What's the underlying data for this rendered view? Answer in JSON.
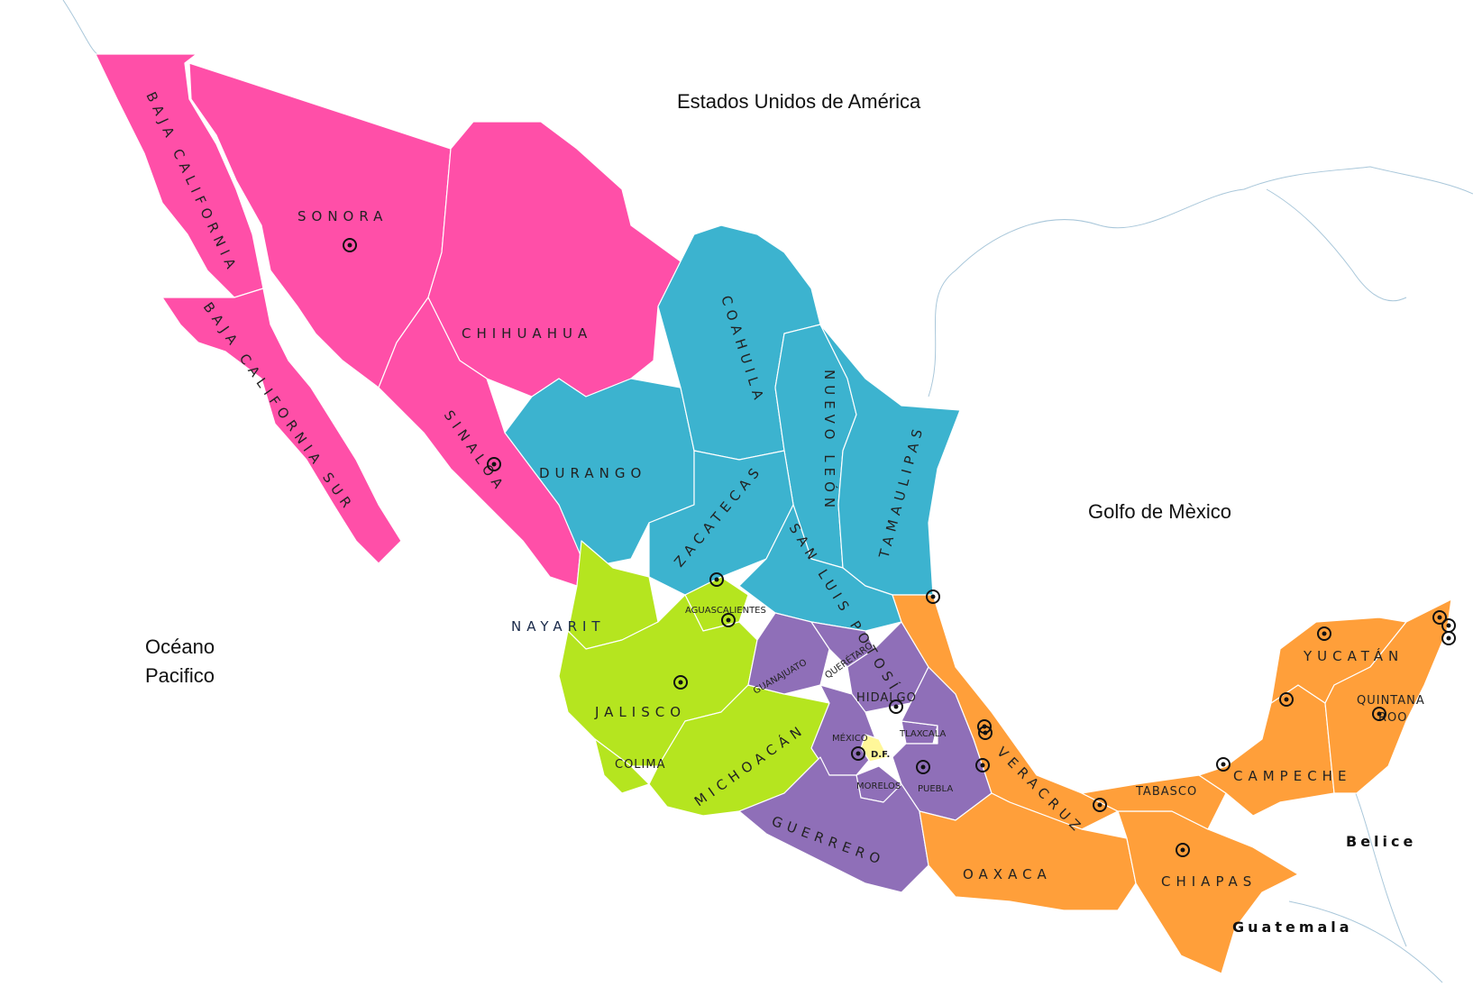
{
  "colors": {
    "northwest": "#ff4fa8",
    "north": "#3cb3cf",
    "west": "#b5e51f",
    "center": "#8f6fb8",
    "south": "#ff9f3a",
    "df": "#fff799",
    "water_coast": "#a9c7da"
  },
  "labels": {
    "usa": "Estados Unidos de América",
    "gulf": "Golfo de Mèxico",
    "ocean_line1": "Océano",
    "ocean_line2": "Pacifico",
    "belice": "Belice",
    "guatemala": "Guatemala"
  },
  "states": {
    "baja_california": "BAJA CALIFORNIA",
    "baja_california_sur": "BAJA CALIFORNIA SUR",
    "sonora": "SONORA",
    "chihuahua": "CHIHUAHUA",
    "sinaloa": "SINALOA",
    "durango": "DURANGO",
    "coahuila": "COAHUILA",
    "nuevo_leon": "NUEVO LEÓN",
    "tamaulipas": "TAMAULIPAS",
    "zacatecas": "ZACATECAS",
    "san_luis_potosi": "SAN LUIS POTOSÍ",
    "nayarit": "NAYARIT",
    "aguascalientes": "AGUASCALIENTES",
    "jalisco": "JALISCO",
    "colima": "COLIMA",
    "michoacan": "MICHOACÁN",
    "guanajuato": "GUANAJUATO",
    "queretaro": "QUERÉTARO",
    "hidalgo": "HIDALGO",
    "mexico": "MÉXICO",
    "df": "D.F.",
    "tlaxcala": "TLAXCALA",
    "morelos": "MORELOS",
    "puebla": "PUEBLA",
    "guerrero": "GUERRERO",
    "veracruz": "VERACRUZ",
    "oaxaca": "OAXACA",
    "chiapas": "CHIAPAS",
    "tabasco": "TABASCO",
    "campeche": "CAMPECHE",
    "yucatan": "YUCATÁN",
    "quintana_roo_line1": "QUINTANA",
    "quintana_roo_line2": "ROO"
  }
}
